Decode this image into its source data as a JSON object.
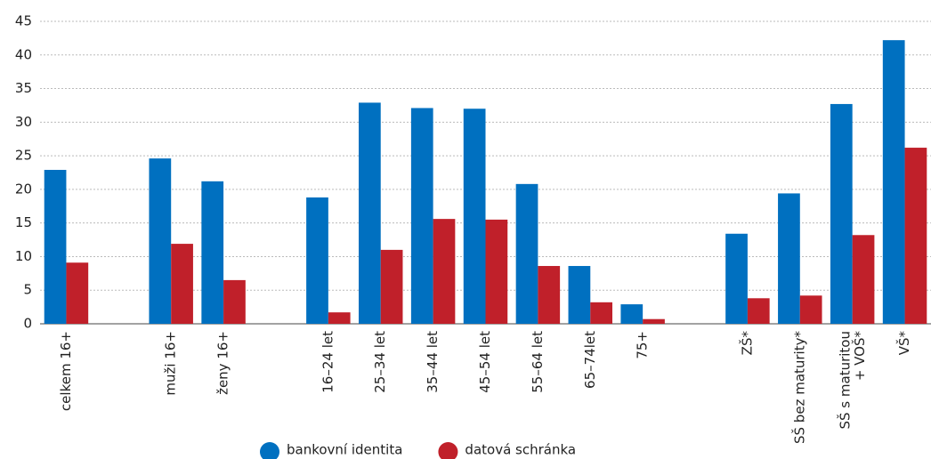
{
  "chart_data": {
    "type": "bar",
    "categories": [
      "celkem 16+",
      null,
      "muži 16+",
      "ženy 16+",
      null,
      "16–24 let",
      "25–34 let",
      "35–44 let",
      "45–54 let",
      "55–64 let",
      "65–74let",
      "75+",
      null,
      "ZŠ*",
      "SŠ bez maturity*",
      "SŠ s maturitou + VOŠ*",
      "VŠ*"
    ],
    "series": [
      {
        "name": "bankovní identita",
        "color": "#0070c0",
        "values": [
          22.9,
          null,
          24.6,
          21.2,
          null,
          18.8,
          32.9,
          32.1,
          32.0,
          20.8,
          8.6,
          2.9,
          null,
          13.4,
          19.4,
          32.7,
          42.2
        ]
      },
      {
        "name": "datová schránka",
        "color": "#c0202a",
        "values": [
          9.1,
          null,
          11.9,
          6.5,
          null,
          1.7,
          11.0,
          15.6,
          15.5,
          8.6,
          3.2,
          0.7,
          null,
          3.8,
          4.2,
          13.2,
          26.2
        ]
      }
    ],
    "ylim": [
      0,
      45
    ],
    "yticks": [
      0,
      5,
      10,
      15,
      20,
      25,
      30,
      35,
      40,
      45
    ],
    "grid": true,
    "legend": "bottom"
  }
}
